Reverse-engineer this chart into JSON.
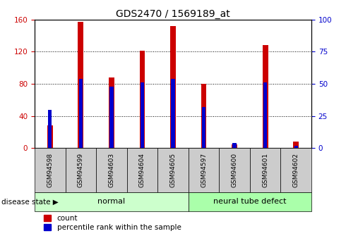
{
  "title": "GDS2470 / 1569189_at",
  "samples": [
    "GSM94598",
    "GSM94599",
    "GSM94603",
    "GSM94604",
    "GSM94605",
    "GSM94597",
    "GSM94600",
    "GSM94601",
    "GSM94602"
  ],
  "count_values": [
    28,
    157,
    88,
    121,
    152,
    80,
    5,
    128,
    8
  ],
  "percentile_values": [
    30,
    54,
    48,
    51,
    54,
    32,
    4,
    51,
    2
  ],
  "normal_group": [
    0,
    1,
    2,
    3,
    4
  ],
  "defect_group": [
    5,
    6,
    7,
    8
  ],
  "bar_color_red": "#CC0000",
  "bar_color_blue": "#0000CC",
  "normal_bg": "#CCFFCC",
  "defect_bg": "#AAFFAA",
  "tick_label_bg": "#CCCCCC",
  "ylim_left": [
    0,
    160
  ],
  "ylim_right": [
    0,
    100
  ],
  "yticks_left": [
    0,
    40,
    80,
    120,
    160
  ],
  "yticks_right": [
    0,
    25,
    50,
    75,
    100
  ],
  "legend_count": "count",
  "legend_percentile": "percentile rank within the sample",
  "disease_state_label": "disease state",
  "normal_label": "normal",
  "defect_label": "neural tube defect",
  "red_bar_width": 0.18,
  "blue_bar_width": 0.12
}
